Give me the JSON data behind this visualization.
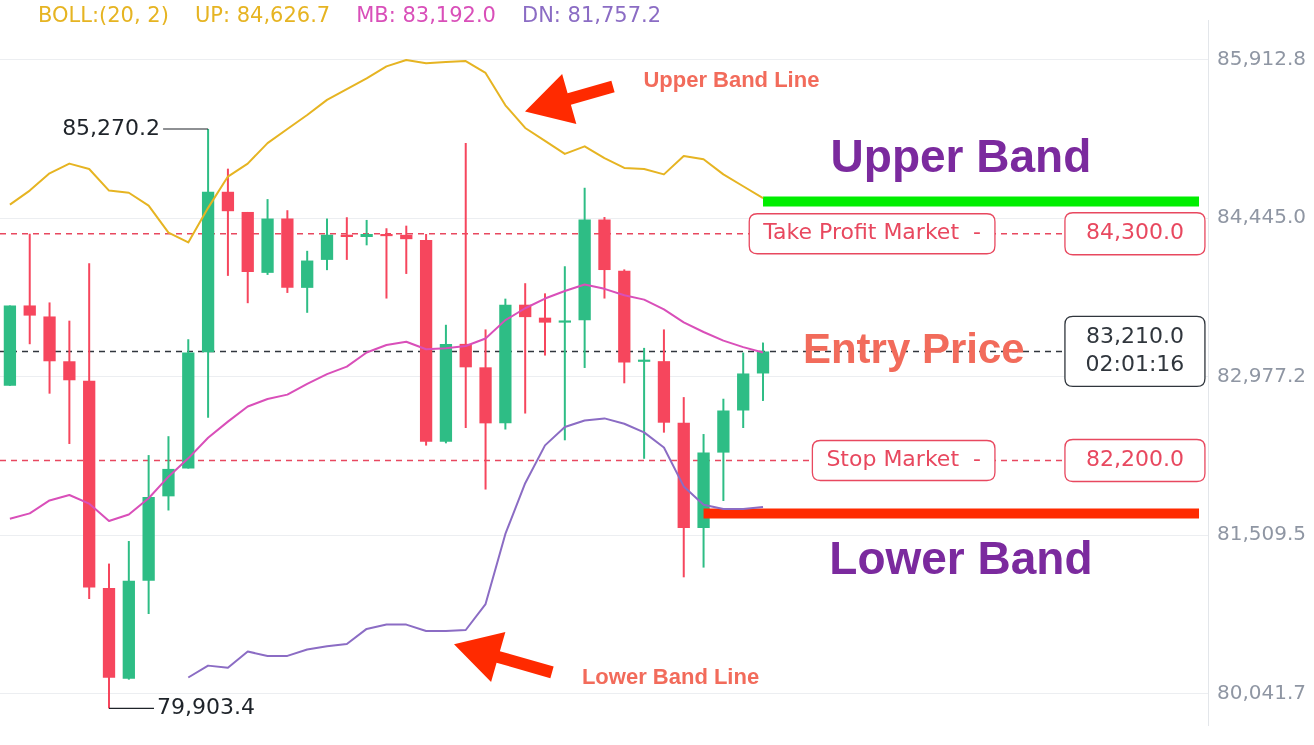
{
  "chart_data": {
    "type": "candlestick",
    "categories": [
      null,
      null,
      null,
      null,
      null,
      null,
      null,
      null,
      null,
      null,
      null,
      null,
      null,
      null,
      null,
      null,
      null,
      null,
      null,
      null,
      null,
      null,
      null,
      null,
      null,
      null,
      null,
      null,
      null,
      null,
      null,
      null,
      null,
      null,
      null,
      null,
      null,
      null,
      null,
      null,
      null,
      null,
      null,
      null,
      null,
      null,
      null,
      null,
      null,
      null,
      null,
      null,
      null,
      null,
      null,
      null,
      null,
      null,
      null,
      null,
      null
    ],
    "ohlc": [
      [
        82892,
        83636,
        82892,
        83636
      ],
      [
        83636,
        84300,
        83277,
        83542
      ],
      [
        83534,
        83664,
        82819,
        83119
      ],
      [
        83119,
        83495,
        82353,
        82943
      ],
      [
        82938,
        84027,
        80918,
        81023
      ],
      [
        81018,
        81245,
        79903.4,
        80188
      ],
      [
        80179,
        81454,
        80170,
        81086
      ],
      [
        81086,
        82250,
        80778,
        81861
      ],
      [
        81868,
        82425,
        81737,
        82122
      ],
      [
        82125,
        83323,
        82125,
        83200
      ],
      [
        83202,
        85270.2,
        82597,
        84689
      ],
      [
        84689,
        84903,
        83910,
        84509
      ],
      [
        84502,
        84502,
        83657,
        83946
      ],
      [
        83938,
        84621,
        83919,
        84441
      ],
      [
        84441,
        84518,
        83752,
        83799
      ],
      [
        83799,
        84142,
        83568,
        84052
      ],
      [
        84058,
        84441,
        83963,
        84291
      ],
      [
        84291,
        84453,
        84058,
        84270
      ],
      [
        84270,
        84428,
        84193,
        84298
      ],
      [
        84298,
        84351,
        83700,
        84278
      ],
      [
        84290,
        84375,
        83928,
        84250
      ],
      [
        84242,
        84298,
        82338,
        82373
      ],
      [
        82373,
        83457,
        82359,
        83280
      ],
      [
        83280,
        85140,
        82501,
        83063
      ],
      [
        83063,
        83414,
        81931,
        82544
      ],
      [
        82544,
        83699,
        82487,
        83643
      ],
      [
        83643,
        83842,
        82635,
        83528
      ],
      [
        83523,
        83748,
        83172,
        83477
      ],
      [
        83477,
        83999,
        82387,
        83497
      ],
      [
        83500,
        84726,
        83057,
        84432
      ],
      [
        84432,
        84455,
        83700,
        83964
      ],
      [
        83958,
        83970,
        82915,
        83108
      ],
      [
        83114,
        83243,
        82216,
        83134
      ],
      [
        83120,
        83414,
        82458,
        82550
      ],
      [
        82550,
        82787,
        81118,
        81574
      ],
      [
        81574,
        82445,
        81208,
        82273
      ],
      [
        82273,
        82772,
        81825,
        82663
      ],
      [
        82663,
        83200,
        82501,
        83006
      ],
      [
        83006,
        83292,
        82752,
        83210
      ],
      null,
      null,
      null,
      null,
      null,
      null,
      null,
      null,
      null,
      null,
      null,
      null,
      null,
      null,
      null,
      null,
      null,
      null,
      null,
      null,
      null,
      null
    ],
    "colors": [
      "#2ebd85",
      "#f6465d",
      "#f6465d",
      "#f6465d",
      "#f6465d",
      "#f6465d",
      "#2ebd85",
      "#2ebd85",
      "#2ebd85",
      "#2ebd85",
      "#2ebd85",
      "#f6465d",
      "#f6465d",
      "#2ebd85",
      "#f6465d",
      "#2ebd85",
      "#2ebd85",
      "#f6465d",
      "#2ebd85",
      "#f6465d",
      "#f6465d",
      "#f6465d",
      "#2ebd85",
      "#f6465d",
      "#f6465d",
      "#2ebd85",
      "#f6465d",
      "#f6465d",
      "#2ebd85",
      "#2ebd85",
      "#f6465d",
      "#f6465d",
      "#2ebd85",
      "#f6465d",
      "#f6465d",
      "#2ebd85",
      "#2ebd85",
      "#2ebd85",
      "#2ebd85",
      null,
      null,
      null,
      null,
      null,
      null,
      null,
      null,
      null,
      null,
      null,
      null,
      null,
      null,
      null,
      null,
      null,
      null,
      null,
      null,
      null,
      null
    ],
    "series": [
      {
        "name": "UP: 84,626.7",
        "type": "line",
        "color": "#e6b422",
        "values": [
          84570,
          84700,
          84860,
          84950,
          84900,
          84700,
          84680,
          84560,
          84310,
          84220,
          84540,
          84830,
          84950,
          85140,
          85270,
          85400,
          85540,
          85640,
          85740,
          85850,
          85910,
          85880,
          85890,
          85900,
          85790,
          85490,
          85280,
          85160,
          85040,
          85110,
          85000,
          84910,
          84900,
          84850,
          85020,
          84990,
          84850,
          84740,
          84630,
          null,
          null,
          null,
          null,
          null,
          null,
          null,
          null,
          null,
          null,
          null,
          null,
          null,
          null,
          null,
          null,
          null,
          null,
          null,
          null,
          null,
          null
        ]
      },
      {
        "name": "MB: 83,192.0",
        "type": "line",
        "color": "#d94fb9",
        "values": [
          81660,
          81710,
          81830,
          81880,
          81800,
          81640,
          81700,
          81850,
          82050,
          82220,
          82410,
          82560,
          82700,
          82770,
          82810,
          82910,
          83000,
          83070,
          83200,
          83270,
          83300,
          83230,
          83240,
          83260,
          83330,
          83500,
          83610,
          83700,
          83770,
          83830,
          83790,
          83730,
          83690,
          83600,
          83480,
          83390,
          83310,
          83250,
          83200,
          null,
          null,
          null,
          null,
          null,
          null,
          null,
          null,
          null,
          null,
          null,
          null,
          null,
          null,
          null,
          null,
          null,
          null,
          null,
          null,
          null,
          null
        ]
      },
      {
        "name": "DN: 81,757.2",
        "type": "line",
        "color": "#8b6cc4",
        "values": [
          null,
          null,
          null,
          null,
          null,
          null,
          null,
          null,
          null,
          80190,
          80300,
          80280,
          80430,
          80390,
          80390,
          80450,
          80480,
          80500,
          80640,
          80680,
          80680,
          80620,
          80620,
          80630,
          80870,
          81520,
          81990,
          82340,
          82510,
          82570,
          82590,
          82540,
          82460,
          82320,
          81960,
          81790,
          81750,
          81750,
          81770,
          null,
          null,
          null,
          null,
          null,
          null,
          null,
          null,
          null,
          null,
          null,
          null,
          null,
          null,
          null,
          null,
          null,
          null,
          null,
          null,
          null,
          null
        ]
      },
      {
        "type": "line",
        "color": "#00ee00",
        "values": [
          null,
          null,
          null,
          null,
          null,
          null,
          null,
          null,
          null,
          null,
          null,
          null,
          null,
          null,
          null,
          null,
          null,
          null,
          null,
          null,
          null,
          null,
          null,
          null,
          null,
          null,
          null,
          null,
          null,
          null,
          null,
          null,
          null,
          null,
          null,
          null,
          null,
          null,
          84600,
          84600,
          84600,
          84600,
          84600,
          84600,
          84600,
          84600,
          84600,
          84600,
          84600,
          84600,
          84600,
          84600,
          84600,
          84600,
          84600,
          84600,
          84600,
          84600,
          84600,
          84600,
          84600
        ]
      },
      {
        "type": "line",
        "color": "#ff2a00",
        "values": [
          null,
          null,
          null,
          null,
          null,
          null,
          null,
          null,
          null,
          null,
          null,
          null,
          null,
          null,
          null,
          null,
          null,
          null,
          null,
          null,
          null,
          null,
          null,
          null,
          null,
          null,
          null,
          null,
          null,
          null,
          null,
          null,
          null,
          null,
          null,
          81710,
          81710,
          81710,
          81710,
          81710,
          81710,
          81710,
          81710,
          81710,
          81710,
          81710,
          81710,
          81710,
          81710,
          81710,
          81710,
          81710,
          81710,
          81710,
          81710,
          81710,
          81710,
          81710,
          81710,
          81710,
          81710
        ]
      }
    ],
    "ylim": [
      79750,
      86280
    ],
    "yticks": [
      {
        "value": 85912.8,
        "label": "85,912.8"
      },
      {
        "value": 84445.0,
        "label": "84,445.0"
      },
      {
        "value": 82977.2,
        "label": "82,977.2"
      },
      {
        "value": 81509.5,
        "label": "81,509.5"
      },
      {
        "value": 80041.7,
        "label": "80,041.7"
      }
    ],
    "tick_labels": "y",
    "grid": "y",
    "legend": "top",
    "ref_lines": [
      {
        "axis": "y",
        "value": 84300,
        "label": "84,300.0",
        "color": "#e8485f",
        "line_style": "dashed"
      },
      {
        "axis": "y",
        "value": 82200,
        "label": "82,200.0",
        "color": "#e8485f",
        "line_style": "dashed"
      },
      {
        "axis": "y",
        "value": 83210,
        "label": "83,210.0\n02:01:16",
        "color": "#30363d",
        "line_style": "dashed"
      }
    ],
    "annotations": [
      "BOLL:(20, 2)",
      "85,270.2",
      "79,903.4",
      "Upper Band Line",
      "Lower Band Line",
      {
        "text": "Entry Price",
        "y": 83210
      },
      {
        "text": "Take Profit Market  -",
        "y": 84300
      },
      {
        "text": "Stop Market  -",
        "y": 82200
      },
      {
        "text": "Upper Band",
        "y": 84600
      },
      {
        "text": "Lower Band",
        "y": 81710
      }
    ]
  }
}
